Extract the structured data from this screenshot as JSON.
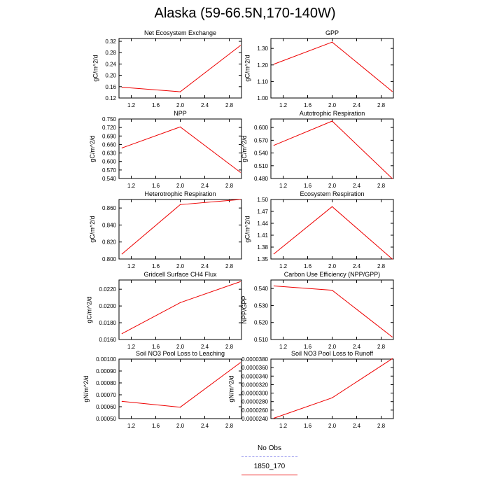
{
  "title": "Alaska (59-66.5N,170-140W)",
  "chart_data": [
    {
      "type": "line",
      "title": "Net Ecosystem Exchange",
      "ylabel": "gC/m^2/d",
      "xlabel": "",
      "xlim": [
        1.0,
        3.0
      ],
      "ylim": [
        0.12,
        0.33
      ],
      "xticks": [
        "1.2",
        "1.6",
        "2.0",
        "2.4",
        "2.8"
      ],
      "yticks": [
        "0.12",
        "0.16",
        "0.20",
        "0.24",
        "0.28",
        "0.32"
      ],
      "series": [
        {
          "name": "1850_170",
          "x": [
            1.05,
            2.0,
            2.98
          ],
          "y": [
            0.158,
            0.142,
            0.305
          ]
        }
      ]
    },
    {
      "type": "line",
      "title": "GPP",
      "ylabel": "gC/m^2/d",
      "xlabel": "",
      "xlim": [
        1.0,
        3.0
      ],
      "ylim": [
        1.0,
        1.36
      ],
      "xticks": [
        "1.2",
        "1.6",
        "2.0",
        "2.4",
        "2.8"
      ],
      "yticks": [
        "1.00",
        "1.10",
        "1.20",
        "1.30"
      ],
      "series": [
        {
          "name": "1850_170",
          "x": [
            1.05,
            2.0,
            2.98
          ],
          "y": [
            1.205,
            1.338,
            1.04
          ]
        }
      ]
    },
    {
      "type": "line",
      "title": "NPP",
      "ylabel": "gC/m^2/d",
      "xlabel": "",
      "xlim": [
        1.0,
        3.0
      ],
      "ylim": [
        0.54,
        0.75
      ],
      "xticks": [
        "1.2",
        "1.6",
        "2.0",
        "2.4",
        "2.8"
      ],
      "yticks": [
        "0.540",
        "0.570",
        "0.600",
        "0.630",
        "0.660",
        "0.690",
        "0.720",
        "0.750"
      ],
      "series": [
        {
          "name": "1850_170",
          "x": [
            1.05,
            2.0,
            2.98
          ],
          "y": [
            0.648,
            0.722,
            0.562
          ]
        }
      ]
    },
    {
      "type": "line",
      "title": "Autotrophic Respiration",
      "ylabel": "gC/m^2/d",
      "xlabel": "",
      "xlim": [
        1.0,
        3.0
      ],
      "ylim": [
        0.48,
        0.62
      ],
      "xticks": [
        "1.2",
        "1.6",
        "2.0",
        "2.4",
        "2.8"
      ],
      "yticks": [
        "0.480",
        "0.510",
        "0.540",
        "0.570",
        "0.600"
      ],
      "series": [
        {
          "name": "1850_170",
          "x": [
            1.05,
            2.0,
            2.98
          ],
          "y": [
            0.558,
            0.615,
            0.48
          ]
        }
      ]
    },
    {
      "type": "line",
      "title": "Heterotrophic Respiration",
      "ylabel": "gC/m^2/d",
      "xlabel": "",
      "xlim": [
        1.0,
        3.0
      ],
      "ylim": [
        0.8,
        0.87
      ],
      "xticks": [
        "1.2",
        "1.6",
        "2.0",
        "2.4",
        "2.8"
      ],
      "yticks": [
        "0.800",
        "0.820",
        "0.840",
        "0.860"
      ],
      "series": [
        {
          "name": "1850_170",
          "x": [
            1.05,
            2.0,
            2.98
          ],
          "y": [
            0.806,
            0.864,
            0.87
          ]
        }
      ]
    },
    {
      "type": "line",
      "title": "Ecosystem Respiration",
      "ylabel": "gC/m^2/d",
      "xlabel": "",
      "xlim": [
        1.0,
        3.0
      ],
      "ylim": [
        1.35,
        1.5
      ],
      "xticks": [
        "1.2",
        "1.6",
        "2.0",
        "2.4",
        "2.8"
      ],
      "yticks": [
        "1.35",
        "1.38",
        "1.41",
        "1.44",
        "1.47",
        "1.50"
      ],
      "series": [
        {
          "name": "1850_170",
          "x": [
            1.05,
            2.0,
            2.98
          ],
          "y": [
            1.363,
            1.482,
            1.35
          ]
        }
      ]
    },
    {
      "type": "line",
      "title": "Gridcell Surface CH4 Flux",
      "ylabel": "gC/m^2/d",
      "xlabel": "",
      "xlim": [
        1.0,
        3.0
      ],
      "ylim": [
        0.016,
        0.0231
      ],
      "xticks": [
        "1.2",
        "1.6",
        "2.0",
        "2.4",
        "2.8"
      ],
      "yticks": [
        "0.0160",
        "0.0180",
        "0.0200",
        "0.0220"
      ],
      "series": [
        {
          "name": "1850_170",
          "x": [
            1.05,
            2.0,
            2.98
          ],
          "y": [
            0.0167,
            0.0204,
            0.0229
          ]
        }
      ]
    },
    {
      "type": "line",
      "title": "Carbon Use Efficiency (NPP/GPP)",
      "ylabel": "NPP/GPP",
      "xlabel": "",
      "xlim": [
        1.0,
        3.0
      ],
      "ylim": [
        0.51,
        0.545
      ],
      "xticks": [
        "1.2",
        "1.6",
        "2.0",
        "2.4",
        "2.8"
      ],
      "yticks": [
        "0.510",
        "0.520",
        "0.530",
        "0.540"
      ],
      "series": [
        {
          "name": "1850_170",
          "x": [
            1.05,
            2.0,
            2.98
          ],
          "y": [
            0.5415,
            0.539,
            0.5115
          ]
        }
      ]
    },
    {
      "type": "line",
      "title": "Soil NO3 Pool Loss to Leaching",
      "ylabel": "gN/m^2/d",
      "xlabel": "",
      "xlim": [
        1.0,
        3.0
      ],
      "ylim": [
        0.0005,
        0.001
      ],
      "xticks": [
        "1.2",
        "1.6",
        "2.0",
        "2.4",
        "2.8"
      ],
      "yticks": [
        "0.00050",
        "0.00060",
        "0.00070",
        "0.00080",
        "0.00090",
        "0.00100"
      ],
      "series": [
        {
          "name": "1850_170",
          "x": [
            1.05,
            2.0,
            2.98
          ],
          "y": [
            0.000645,
            0.000596,
            0.00097
          ]
        }
      ]
    },
    {
      "type": "line",
      "title": "Soil NO3 Pool Loss to Runoff",
      "ylabel": "gN/m^2/d",
      "xlabel": "",
      "xlim": [
        1.0,
        3.0
      ],
      "ylim": [
        2.4e-05,
        3.8e-05
      ],
      "xticks": [
        "1.2",
        "1.6",
        "2.0",
        "2.4",
        "2.8"
      ],
      "yticks": [
        "0.0000240",
        "0.0000260",
        "0.0000280",
        "0.0000300",
        "0.0000320",
        "0.0000340",
        "0.0000360",
        "0.0000380"
      ],
      "series": [
        {
          "name": "1850_170",
          "x": [
            1.05,
            2.0,
            2.98
          ],
          "y": [
            2.41e-05,
            2.89e-05,
            3.81e-05
          ]
        }
      ]
    }
  ],
  "legend": {
    "placement": "bottom-center",
    "items": [
      {
        "label": "No Obs",
        "color": "#9999ee",
        "style": "dashed"
      },
      {
        "label": "1850_170",
        "color": "#ee2222",
        "style": "solid"
      }
    ]
  },
  "colors": {
    "series": "#ee0000",
    "axis": "#000000"
  }
}
